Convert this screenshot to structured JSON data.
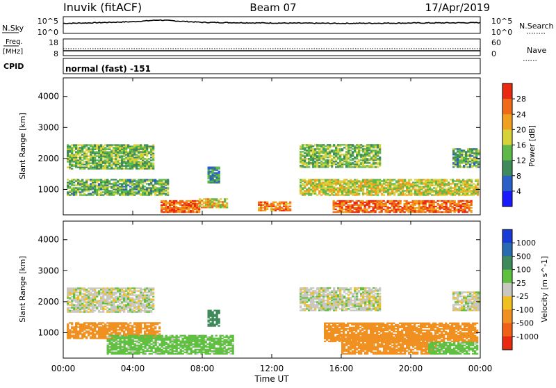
{
  "header": {
    "station": "Inuvik (fitACF)",
    "beam": "Beam 07",
    "date": "17/Apr/2019"
  },
  "sky_panel": {
    "left_label": "N.Sky",
    "right_label": "N.Search",
    "left_ticks": [
      "10^5",
      "10^0"
    ],
    "right_ticks": [
      "10^5",
      "10^0"
    ]
  },
  "freq_panel": {
    "left_label_top": "Freq.",
    "left_label_unit": "[MHz]",
    "right_label": "Nave",
    "left_ticks": [
      "18",
      "8"
    ],
    "right_ticks": [
      "60",
      "0"
    ]
  },
  "cpid_panel": {
    "label": "CPID",
    "mode_text": "normal (fast) -151"
  },
  "x_axis": {
    "title": "Time UT",
    "tick_labels": [
      "00:00",
      "04:00",
      "08:00",
      "12:00",
      "16:00",
      "20:00",
      "00:00"
    ]
  },
  "power_panel": {
    "y_axis_title": "Slant Range [km]",
    "y_tick_labels": [
      "1000",
      "2000",
      "3000",
      "4000"
    ],
    "colorbar_title": "Power [dB]",
    "colorbar_tick_labels": [
      "4",
      "8",
      "12",
      "16",
      "20",
      "24",
      "28"
    ],
    "colorbar_colors": [
      "#1a1aff",
      "#2a5fc8",
      "#3f8a5a",
      "#5fb84a",
      "#d8d23a",
      "#f0a020",
      "#f06a18",
      "#e82a10"
    ]
  },
  "velocity_panel": {
    "y_axis_title": "Slant Range [km]",
    "y_tick_labels": [
      "1000",
      "2000",
      "3000",
      "4000"
    ],
    "colorbar_title": "Velocity [m s^-1]",
    "colorbar_tick_labels": [
      "1000",
      "500",
      "100",
      "25",
      "-25",
      "-100",
      "-500",
      "-1000"
    ],
    "colorbar_colors": [
      "#1a3ad8",
      "#2a6ab0",
      "#3f8a5a",
      "#5fc040",
      "#c8c8c0",
      "#f0c020",
      "#f09020",
      "#f06018",
      "#e82a10"
    ]
  },
  "chart_data": [
    {
      "type": "line",
      "title": "N.Sky / N.Search",
      "x_range_hours": [
        0,
        24
      ],
      "series": [
        {
          "name": "N.Sky",
          "x": [
            0,
            2,
            4,
            5.5,
            8,
            12,
            16,
            20,
            24
          ],
          "y": [
            3.0,
            3.2,
            3.5,
            4.0,
            3.3,
            3.1,
            3.0,
            3.1,
            3.2
          ]
        }
      ]
    },
    {
      "type": "line",
      "title": "Freq. / Nave",
      "x_range_hours": [
        0,
        24
      ],
      "series": [
        {
          "name": "Freq.",
          "x": [
            0,
            24
          ],
          "y": [
            10.5,
            10.5
          ]
        },
        {
          "name": "Nave",
          "x": [
            0,
            24
          ],
          "y": [
            24,
            24
          ]
        }
      ]
    },
    {
      "type": "heatmap",
      "title": "Power [dB]",
      "xlabel": "Time UT",
      "ylabel": "Slant Range [km]",
      "x_range_hours": [
        0,
        24
      ],
      "ylim": [
        180,
        4600
      ],
      "regions": [
        {
          "t0": 0.2,
          "t1": 5.2,
          "r0": 1650,
          "r1": 2450,
          "value": 14
        },
        {
          "t0": 0.2,
          "t1": 6.0,
          "r0": 800,
          "r1": 1300,
          "value": 13
        },
        {
          "t0": 5.6,
          "t1": 7.8,
          "r0": 250,
          "r1": 650,
          "value": 26
        },
        {
          "t0": 7.8,
          "t1": 9.4,
          "r0": 400,
          "r1": 700,
          "value": 20
        },
        {
          "t0": 8.3,
          "t1": 9.0,
          "r0": 1200,
          "r1": 1700,
          "value": 10
        },
        {
          "t0": 11.2,
          "t1": 13.0,
          "r0": 300,
          "r1": 600,
          "value": 24
        },
        {
          "t0": 13.6,
          "t1": 18.2,
          "r0": 1700,
          "r1": 2450,
          "value": 14
        },
        {
          "t0": 13.6,
          "t1": 23.9,
          "r0": 800,
          "r1": 1300,
          "value": 18
        },
        {
          "t0": 15.5,
          "t1": 23.5,
          "r0": 250,
          "r1": 650,
          "value": 26
        },
        {
          "t0": 22.4,
          "t1": 23.9,
          "r0": 1700,
          "r1": 2300,
          "value": 12
        }
      ]
    },
    {
      "type": "heatmap",
      "title": "Velocity [m s^-1]",
      "xlabel": "Time UT",
      "ylabel": "Slant Range [km]",
      "x_range_hours": [
        0,
        24
      ],
      "ylim": [
        180,
        4600
      ],
      "regions": [
        {
          "t0": 0.2,
          "t1": 5.2,
          "r0": 1650,
          "r1": 2450,
          "value": 0
        },
        {
          "t0": 0.2,
          "t1": 5.6,
          "r0": 800,
          "r1": 1300,
          "value": -150
        },
        {
          "t0": 2.5,
          "t1": 9.8,
          "r0": 300,
          "r1": 900,
          "value": 60
        },
        {
          "t0": 8.3,
          "t1": 9.0,
          "r0": 1200,
          "r1": 1700,
          "value": 300
        },
        {
          "t0": 13.6,
          "t1": 18.2,
          "r0": 1700,
          "r1": 2450,
          "value": 0
        },
        {
          "t0": 15.0,
          "t1": 23.8,
          "r0": 700,
          "r1": 1300,
          "value": -150
        },
        {
          "t0": 16.0,
          "t1": 21.5,
          "r0": 300,
          "r1": 900,
          "value": -300
        },
        {
          "t0": 21.0,
          "t1": 23.8,
          "r0": 300,
          "r1": 700,
          "value": 60
        },
        {
          "t0": 22.4,
          "t1": 23.9,
          "r0": 1700,
          "r1": 2300,
          "value": 0
        }
      ]
    }
  ]
}
